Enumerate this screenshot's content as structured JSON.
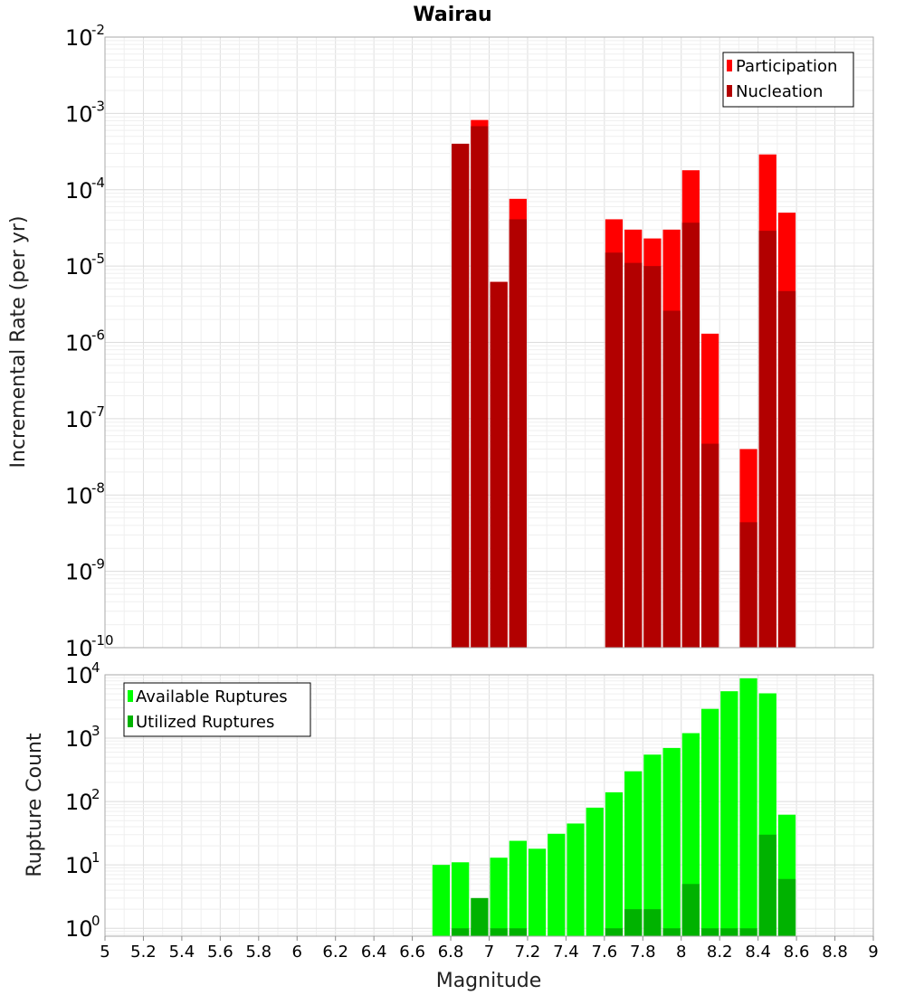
{
  "chart_data": [
    {
      "type": "bar",
      "title": "Wairau",
      "xlabel": "",
      "ylabel": "Incremental Rate (per yr)",
      "yscale": "log",
      "ylim": [
        1e-10,
        0.01
      ],
      "xlim": [
        5,
        9
      ],
      "ytick_base": "10",
      "ytick_exponents": [
        "-10",
        "-9",
        "-8",
        "-7",
        "-6",
        "-5",
        "-4",
        "-3",
        "-2"
      ],
      "legend_position": "top-right",
      "x": [
        6.85,
        6.95,
        7.05,
        7.15,
        7.65,
        7.75,
        7.85,
        7.95,
        8.05,
        8.15,
        8.35,
        8.45,
        8.55
      ],
      "series": [
        {
          "name": "Participation",
          "color": "#ff0000",
          "values": [
            0.0004,
            0.00082,
            6.2e-06,
            7.6e-05,
            4.1e-05,
            3e-05,
            2.3e-05,
            3e-05,
            0.00018,
            1.3e-06,
            4e-08,
            0.00029,
            5e-05
          ]
        },
        {
          "name": "Nucleation",
          "color": "#b20000",
          "values": [
            0.0004,
            0.00068,
            6.2e-06,
            4.1e-05,
            1.5e-05,
            1.1e-05,
            1e-05,
            2.6e-06,
            3.7e-05,
            4.7e-08,
            4.4e-09,
            2.9e-05,
            4.7e-06
          ]
        }
      ]
    },
    {
      "type": "bar",
      "title": "",
      "xlabel": "Magnitude",
      "ylabel": "Rupture Count",
      "yscale": "log",
      "ylim": [
        0.75,
        10000.0
      ],
      "xlim": [
        5,
        9
      ],
      "xticks": [
        "5",
        "5.2",
        "5.4",
        "5.6",
        "5.8",
        "6",
        "6.2",
        "6.4",
        "6.6",
        "6.8",
        "7",
        "7.2",
        "7.4",
        "7.6",
        "7.8",
        "8",
        "8.2",
        "8.4",
        "8.6",
        "8.8",
        "9"
      ],
      "ytick_base": "10",
      "ytick_exponents": [
        "0",
        "1",
        "2",
        "3",
        "4"
      ],
      "legend_position": "top-left",
      "x": [
        6.75,
        6.85,
        6.95,
        7.05,
        7.15,
        7.25,
        7.35,
        7.45,
        7.55,
        7.65,
        7.75,
        7.85,
        7.95,
        8.05,
        8.15,
        8.25,
        8.35,
        8.45,
        8.55
      ],
      "series": [
        {
          "name": "Available Ruptures",
          "color": "#00ff00",
          "values": [
            10,
            11,
            1,
            13,
            24,
            18,
            31,
            45,
            80,
            140,
            300,
            550,
            700,
            1200,
            2900,
            5500,
            8800,
            5100,
            62
          ]
        },
        {
          "name": "Utilized Ruptures",
          "color": "#00b200",
          "values": [
            0,
            1,
            3,
            1,
            1,
            0,
            0,
            0,
            0,
            1,
            2,
            2,
            1,
            5,
            1,
            1,
            1,
            30,
            6
          ]
        }
      ]
    }
  ]
}
